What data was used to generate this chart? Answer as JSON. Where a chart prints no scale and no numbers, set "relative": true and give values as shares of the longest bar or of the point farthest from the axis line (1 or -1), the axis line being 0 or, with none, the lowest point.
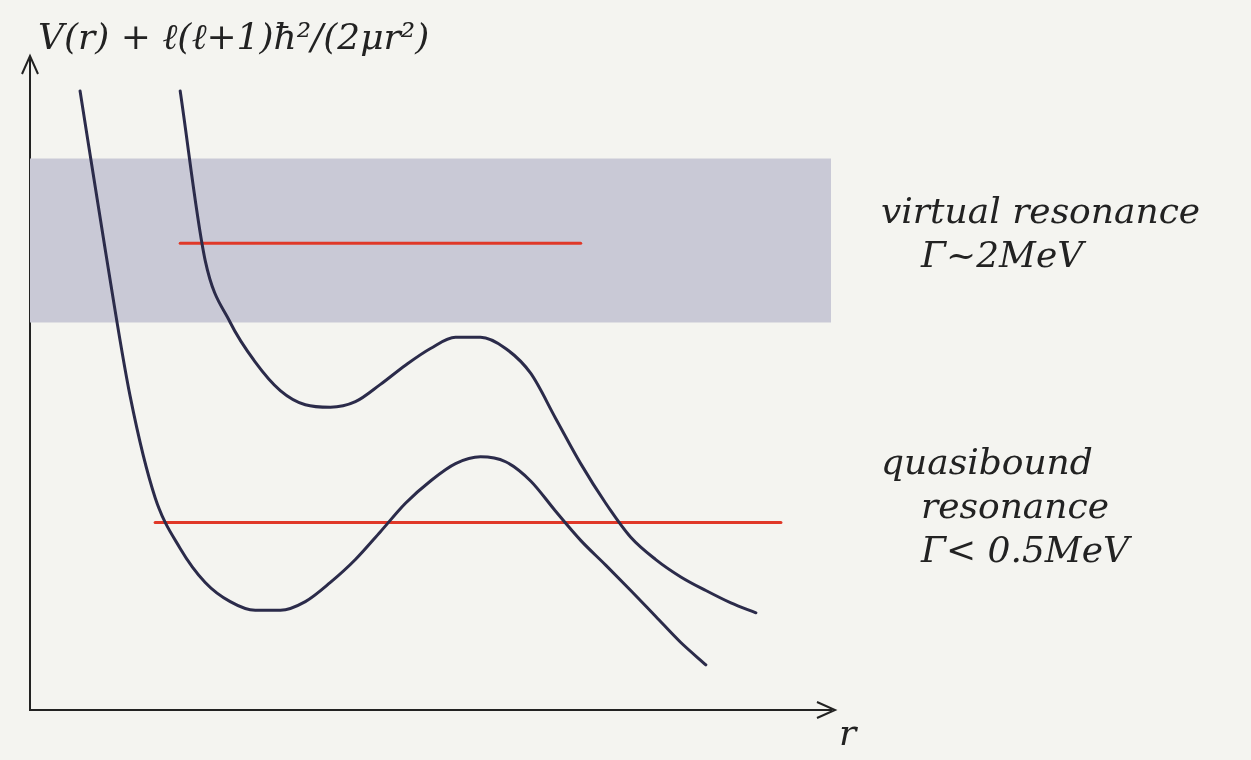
{
  "chart_data": {
    "type": "line",
    "relative": true,
    "ylabel": "V(r) + ℓ(ℓ+1)ħ²/(2μr²)",
    "xlabel": "r",
    "categories": [
      null,
      null,
      null,
      null,
      null,
      null,
      null,
      null,
      null,
      null,
      null,
      null,
      null,
      null,
      null,
      null,
      null,
      null,
      null,
      null,
      null,
      null,
      null,
      null,
      null,
      null,
      null,
      null,
      null,
      null,
      null,
      null,
      null
    ],
    "series": [
      {
        "color": "#2b2b4a",
        "values": [
          null,
          null,
          1.0,
          0.745,
          0.507,
          0.343,
          0.261,
          0.206,
          0.175,
          0.161,
          0.161,
          0.175,
          0.206,
          0.243,
          0.288,
          0.334,
          0.37,
          0.398,
          0.409,
          0.401,
          0.37,
          0.321,
          0.274,
          0.234,
          0.193,
          0.151,
          0.109,
          0.073,
          null,
          null,
          null,
          null,
          null
        ]
      },
      {
        "color": "#2b2b4a",
        "values": [
          null,
          null,
          null,
          null,
          null,
          null,
          1.0,
          0.726,
          0.626,
          0.562,
          0.516,
          0.493,
          0.489,
          0.498,
          0.526,
          0.557,
          0.584,
          0.602,
          0.602,
          0.584,
          0.544,
          0.471,
          0.398,
          0.334,
          0.279,
          0.243,
          0.215,
          0.193,
          0.173,
          0.157,
          null,
          null,
          null
        ]
      },
      {
        "color": "#e03828",
        "values": [
          null,
          null,
          null,
          null,
          null,
          null,
          0.754,
          0.754,
          0.754,
          0.754,
          0.754,
          0.754,
          0.754,
          0.754,
          0.754,
          0.754,
          0.754,
          0.754,
          0.754,
          0.754,
          0.754,
          0.754,
          0.754,
          null,
          null,
          null,
          null,
          null,
          null,
          null,
          null,
          null,
          null
        ]
      },
      {
        "color": "#e03828",
        "values": [
          null,
          null,
          null,
          null,
          null,
          0.303,
          0.303,
          0.303,
          0.303,
          0.303,
          0.303,
          0.303,
          0.303,
          0.303,
          0.303,
          0.303,
          0.303,
          0.303,
          0.303,
          0.303,
          0.303,
          0.303,
          0.303,
          0.303,
          0.303,
          0.303,
          0.303,
          0.303,
          0.303,
          0.303,
          0.303,
          null,
          null
        ]
      }
    ],
    "bands": [
      {
        "axis": "y",
        "from": 0.626,
        "to": 0.891,
        "color": "#c9c9d6"
      }
    ],
    "annotations": [
      "virtual resonance\nΓ~2MeV",
      "quasibound\nresonance\nΓ< 0.5MeV"
    ],
    "legend": false,
    "grid": false,
    "marker": "none",
    "line_style": "solid"
  }
}
